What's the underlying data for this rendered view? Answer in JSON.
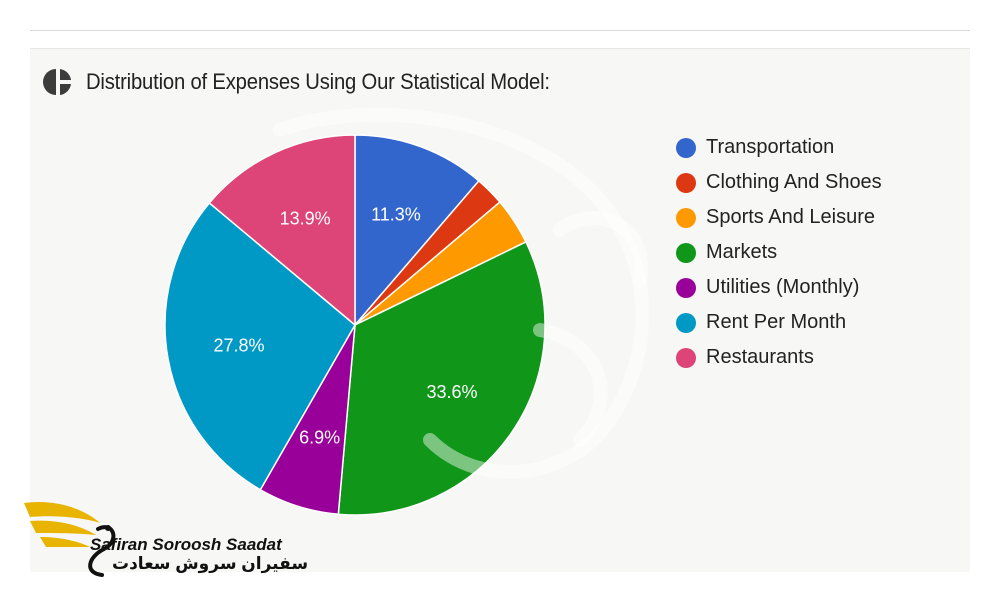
{
  "header": {
    "title": "Distribution of Expenses Using Our Statistical Model:",
    "icon": "pie-chart-icon"
  },
  "chart_data": {
    "type": "pie",
    "title": "Distribution of Expenses Using Our Statistical Model:",
    "legend_position": "right",
    "slices": [
      {
        "name": "Transportation",
        "value": 11.3,
        "label": "11.3%",
        "color": "#3366cc"
      },
      {
        "name": "Clothing And Shoes",
        "value": 2.5,
        "label": "",
        "color": "#dc3912"
      },
      {
        "name": "Sports And Leisure",
        "value": 4.0,
        "label": "",
        "color": "#ff9900"
      },
      {
        "name": "Markets",
        "value": 33.6,
        "label": "33.6%",
        "color": "#109618"
      },
      {
        "name": "Utilities (Monthly)",
        "value": 6.9,
        "label": "6.9%",
        "color": "#990099"
      },
      {
        "name": "Rent Per Month",
        "value": 27.8,
        "label": "27.8%",
        "color": "#0099c6"
      },
      {
        "name": "Restaurants",
        "value": 13.9,
        "label": "13.9%",
        "color": "#dd4477"
      }
    ]
  },
  "logo": {
    "name_en": "Safiran Soroosh Saadat",
    "name_fa": "سفیران سروش سعادت",
    "icon": "swan-wing-logo-icon"
  }
}
